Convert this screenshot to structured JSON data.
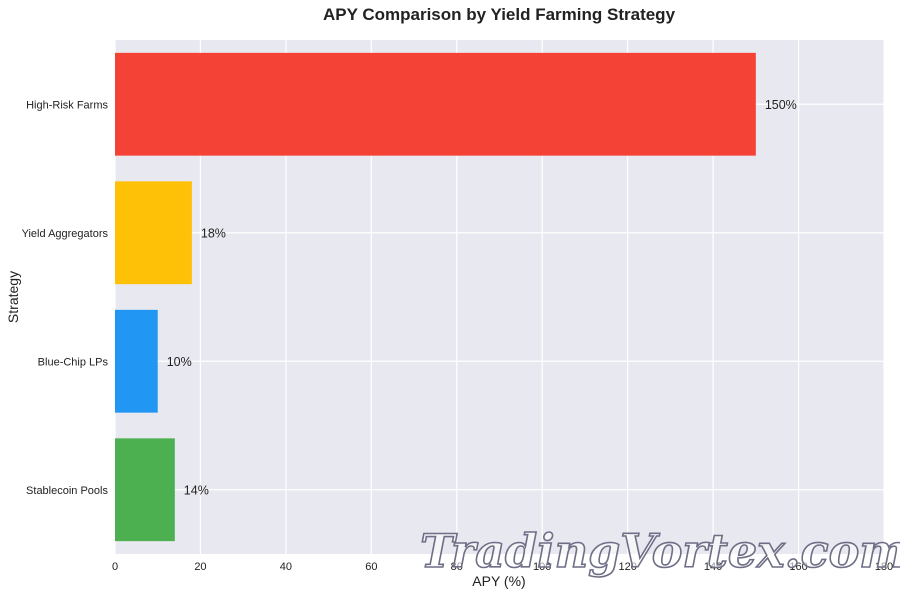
{
  "chart_data": {
    "type": "bar",
    "orientation": "horizontal",
    "title": "APY Comparison by Yield Farming Strategy",
    "xlabel": "APY (%)",
    "ylabel": "Strategy",
    "categories": [
      "Stablecoin Pools",
      "Blue-Chip LPs",
      "Yield Aggregators",
      "High-Risk Farms"
    ],
    "values": [
      14,
      10,
      18,
      150
    ],
    "data_labels": [
      "14%",
      "10%",
      "18%",
      "150%"
    ],
    "colors": [
      "#4CAF50",
      "#2196F3",
      "#FFC107",
      "#F44336"
    ],
    "xlim": [
      0,
      180
    ],
    "xticks": [
      0,
      20,
      40,
      60,
      80,
      100,
      120,
      140,
      160,
      180
    ],
    "grid": true,
    "background": "#E8E8F0"
  },
  "watermark": "TradingVortex.com"
}
